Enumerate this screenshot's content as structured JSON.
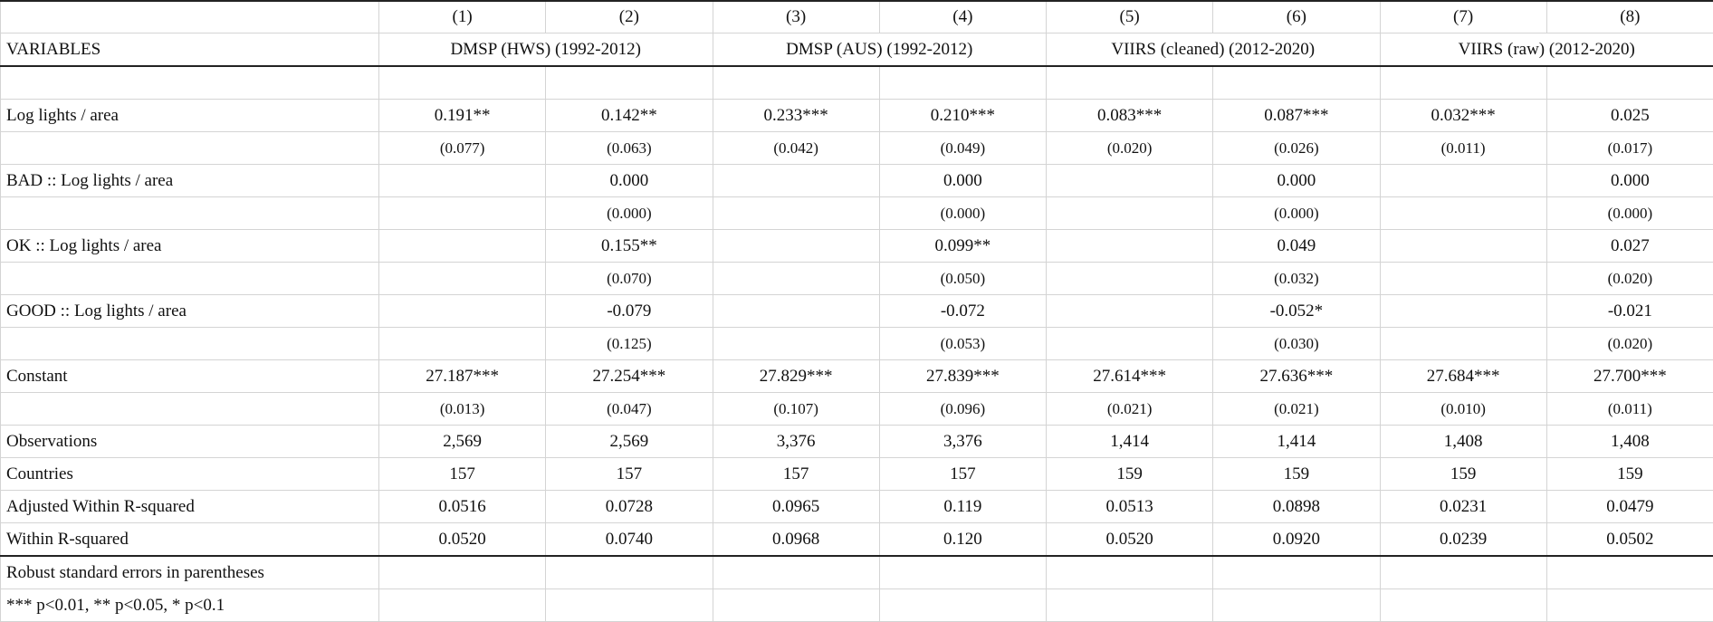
{
  "header": {
    "col_numbers": [
      "(1)",
      "(2)",
      "(3)",
      "(4)",
      "(5)",
      "(6)",
      "(7)",
      "(8)"
    ],
    "variables_label": "VARIABLES",
    "groups": [
      "DMSP (HWS) (1992-2012)",
      "DMSP (AUS) (1992-2012)",
      "VIIRS (cleaned) (2012-2020)",
      "VIIRS (raw) (2012-2020)"
    ]
  },
  "rows": [
    {
      "label": "Log lights / area",
      "values": [
        "0.191**",
        "0.142**",
        "0.233***",
        "0.210***",
        "0.083***",
        "0.087***",
        "0.032***",
        "0.025"
      ]
    },
    {
      "label": "",
      "se": true,
      "values": [
        "(0.077)",
        "(0.063)",
        "(0.042)",
        "(0.049)",
        "(0.020)",
        "(0.026)",
        "(0.011)",
        "(0.017)"
      ]
    },
    {
      "label": "BAD :: Log lights / area",
      "values": [
        "",
        "0.000",
        "",
        "0.000",
        "",
        "0.000",
        "",
        "0.000"
      ]
    },
    {
      "label": "",
      "se": true,
      "values": [
        "",
        "(0.000)",
        "",
        "(0.000)",
        "",
        "(0.000)",
        "",
        "(0.000)"
      ]
    },
    {
      "label": "OK :: Log lights / area",
      "values": [
        "",
        "0.155**",
        "",
        "0.099**",
        "",
        "0.049",
        "",
        "0.027"
      ]
    },
    {
      "label": "",
      "se": true,
      "values": [
        "",
        "(0.070)",
        "",
        "(0.050)",
        "",
        "(0.032)",
        "",
        "(0.020)"
      ]
    },
    {
      "label": "GOOD :: Log lights / area",
      "values": [
        "",
        "-0.079",
        "",
        "-0.072",
        "",
        "-0.052*",
        "",
        "-0.021"
      ]
    },
    {
      "label": "",
      "se": true,
      "values": [
        "",
        "(0.125)",
        "",
        "(0.053)",
        "",
        "(0.030)",
        "",
        "(0.020)"
      ]
    },
    {
      "label": "Constant",
      "values": [
        "27.187***",
        "27.254***",
        "27.829***",
        "27.839***",
        "27.614***",
        "27.636***",
        "27.684***",
        "27.700***"
      ]
    },
    {
      "label": "",
      "se": true,
      "values": [
        "(0.013)",
        "(0.047)",
        "(0.107)",
        "(0.096)",
        "(0.021)",
        "(0.021)",
        "(0.010)",
        "(0.011)"
      ]
    },
    {
      "label": "Observations",
      "values": [
        "2,569",
        "2,569",
        "3,376",
        "3,376",
        "1,414",
        "1,414",
        "1,408",
        "1,408"
      ]
    },
    {
      "label": "Countries",
      "values": [
        "157",
        "157",
        "157",
        "157",
        "159",
        "159",
        "159",
        "159"
      ]
    },
    {
      "label": "Adjusted Within R-squared",
      "values": [
        "0.0516",
        "0.0728",
        "0.0965",
        "0.119",
        "0.0513",
        "0.0898",
        "0.0231",
        "0.0479"
      ]
    },
    {
      "label": "Within R-squared",
      "values": [
        "0.0520",
        "0.0740",
        "0.0968",
        "0.120",
        "0.0520",
        "0.0920",
        "0.0239",
        "0.0502"
      ]
    }
  ],
  "notes": [
    "Robust standard errors in parentheses",
    "*** p<0.01, ** p<0.05, * p<0.1"
  ]
}
